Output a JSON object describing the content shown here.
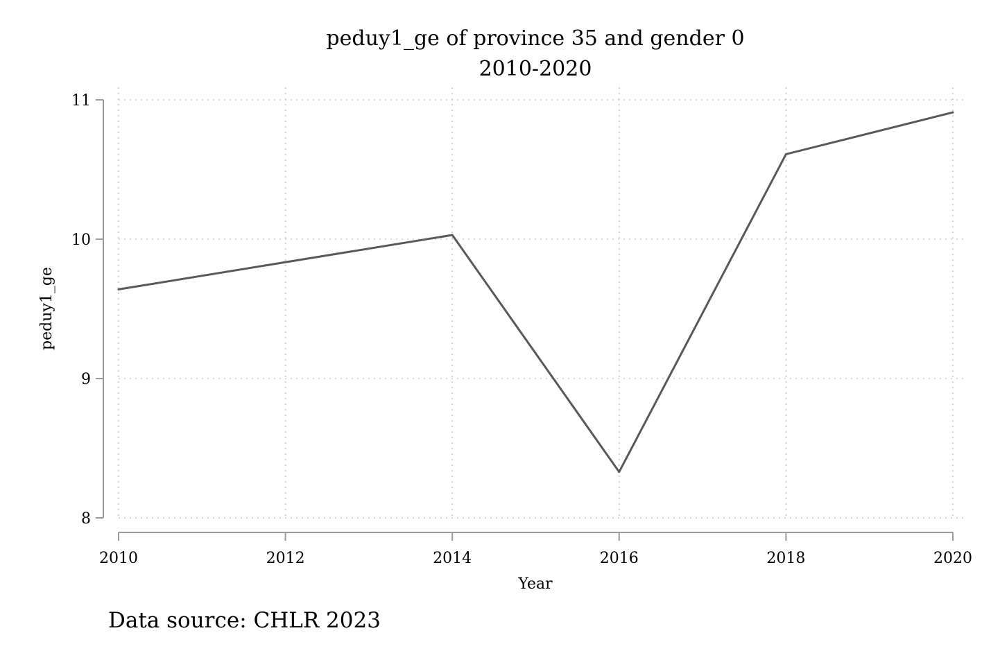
{
  "chart_data": {
    "type": "line",
    "title": "peduy1_ge of province 35 and gender 0",
    "subtitle": "2010-2020",
    "xlabel": "Year",
    "ylabel": "peduy1_ge",
    "note": "Data source: CHLR 2023",
    "x": [
      2010,
      2014,
      2016,
      2018,
      2020
    ],
    "series": [
      {
        "values": [
          9.64,
          10.03,
          8.33,
          10.61,
          10.91
        ]
      }
    ],
    "xticks": [
      "2010",
      "2012",
      "2014",
      "2016",
      "2018",
      "2020"
    ],
    "yticks": [
      "8",
      "9",
      "10",
      "11"
    ],
    "xlim": [
      2010,
      2020
    ],
    "ylim": [
      8,
      11
    ],
    "grid": true,
    "line_color": "#595959",
    "axis_color": "#9a9a9a",
    "grid_color": "#c8c8c8"
  }
}
